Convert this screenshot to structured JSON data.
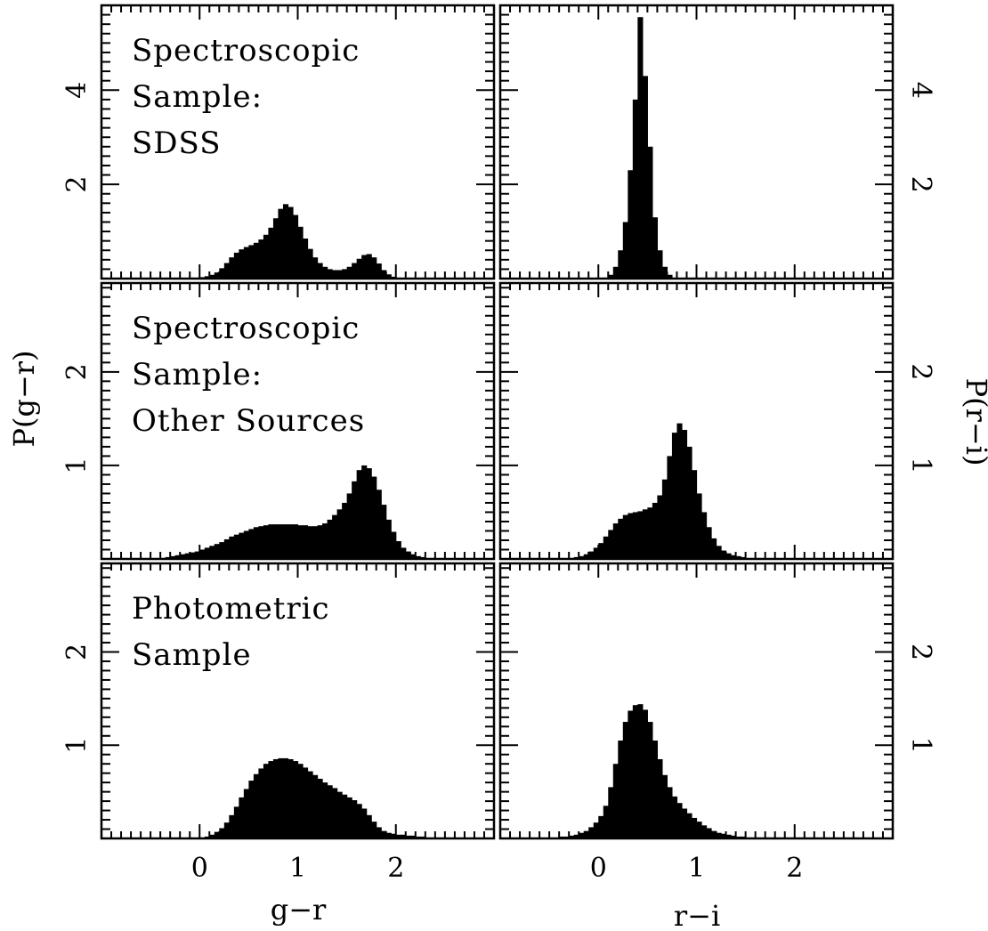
{
  "figure": {
    "xlabels": {
      "left": "g−r",
      "right": "r−i"
    },
    "ylabels": {
      "left": "P(g−r)",
      "right": "P(r−i)"
    }
  },
  "chart_data": [
    {
      "type": "bar",
      "panel": "top-left",
      "annotation": [
        "Spectroscopic",
        "Sample:",
        "SDSS"
      ],
      "xlabel": "g−r",
      "ylabel": "P(g−r)",
      "xlim": [
        -1,
        3
      ],
      "ylim": [
        0,
        5.8
      ],
      "x_ticks": [
        "0",
        "1",
        "2"
      ],
      "y_ticks": [
        "2",
        "4"
      ],
      "bin_width": 0.05,
      "x": [
        -0.3,
        -0.25,
        -0.2,
        -0.15,
        -0.1,
        -0.05,
        0.0,
        0.05,
        0.1,
        0.15,
        0.2,
        0.25,
        0.3,
        0.35,
        0.4,
        0.45,
        0.5,
        0.55,
        0.6,
        0.65,
        0.7,
        0.75,
        0.8,
        0.85,
        0.9,
        0.95,
        1.0,
        1.05,
        1.1,
        1.15,
        1.2,
        1.25,
        1.3,
        1.35,
        1.4,
        1.45,
        1.5,
        1.55,
        1.6,
        1.65,
        1.7,
        1.75,
        1.8,
        1.85,
        1.9,
        1.95,
        2.0,
        2.05,
        2.1
      ],
      "values": [
        0.0,
        0.0,
        0.01,
        0.01,
        0.02,
        0.02,
        0.03,
        0.05,
        0.08,
        0.13,
        0.22,
        0.33,
        0.45,
        0.55,
        0.62,
        0.67,
        0.71,
        0.76,
        0.83,
        0.93,
        1.08,
        1.28,
        1.48,
        1.58,
        1.52,
        1.35,
        1.1,
        0.85,
        0.63,
        0.45,
        0.33,
        0.25,
        0.2,
        0.18,
        0.18,
        0.2,
        0.25,
        0.33,
        0.42,
        0.5,
        0.52,
        0.45,
        0.32,
        0.18,
        0.09,
        0.04,
        0.02,
        0.01,
        0.0
      ]
    },
    {
      "type": "bar",
      "panel": "top-right",
      "xlabel": "r−i",
      "ylabel": "P(r−i)",
      "xlim": [
        -1,
        3
      ],
      "ylim": [
        0,
        5.8
      ],
      "x_ticks": [
        "0",
        "1",
        "2"
      ],
      "y_ticks": [
        "2",
        "4"
      ],
      "bin_width": 0.05,
      "x": [
        0.05,
        0.1,
        0.15,
        0.2,
        0.25,
        0.3,
        0.35,
        0.4,
        0.45,
        0.5,
        0.55,
        0.6,
        0.65,
        0.7,
        0.75
      ],
      "values": [
        0.02,
        0.08,
        0.25,
        0.6,
        1.2,
        2.3,
        3.8,
        5.55,
        4.3,
        2.8,
        1.3,
        0.6,
        0.25,
        0.08,
        0.02
      ]
    },
    {
      "type": "bar",
      "panel": "middle-left",
      "annotation": [
        "Spectroscopic",
        "Sample:",
        "Other Sources"
      ],
      "xlabel": "g−r",
      "ylabel": "P(g−r)",
      "xlim": [
        -1,
        3
      ],
      "ylim": [
        0,
        2.95
      ],
      "x_ticks": [
        "0",
        "1",
        "2"
      ],
      "y_ticks": [
        "1",
        "2"
      ],
      "bin_width": 0.05,
      "x": [
        -0.5,
        -0.45,
        -0.4,
        -0.35,
        -0.3,
        -0.25,
        -0.2,
        -0.15,
        -0.1,
        -0.05,
        0.0,
        0.05,
        0.1,
        0.15,
        0.2,
        0.25,
        0.3,
        0.35,
        0.4,
        0.45,
        0.5,
        0.55,
        0.6,
        0.65,
        0.7,
        0.75,
        0.8,
        0.85,
        0.9,
        0.95,
        1.0,
        1.05,
        1.1,
        1.15,
        1.2,
        1.25,
        1.3,
        1.35,
        1.4,
        1.45,
        1.5,
        1.55,
        1.6,
        1.65,
        1.7,
        1.75,
        1.8,
        1.85,
        1.9,
        1.95,
        2.0,
        2.05,
        2.1,
        2.15,
        2.2,
        2.25,
        2.3,
        2.35,
        2.4,
        2.45,
        2.5,
        2.55
      ],
      "values": [
        0.0,
        0.01,
        0.01,
        0.02,
        0.03,
        0.04,
        0.05,
        0.06,
        0.07,
        0.08,
        0.1,
        0.12,
        0.14,
        0.16,
        0.18,
        0.21,
        0.24,
        0.26,
        0.28,
        0.3,
        0.32,
        0.34,
        0.35,
        0.36,
        0.37,
        0.37,
        0.37,
        0.37,
        0.37,
        0.37,
        0.36,
        0.36,
        0.35,
        0.35,
        0.36,
        0.38,
        0.42,
        0.47,
        0.53,
        0.6,
        0.7,
        0.83,
        0.95,
        1.0,
        0.97,
        0.88,
        0.74,
        0.58,
        0.42,
        0.29,
        0.19,
        0.12,
        0.08,
        0.05,
        0.03,
        0.02,
        0.01,
        0.01,
        0.0,
        0.0,
        0.0,
        0.0
      ]
    },
    {
      "type": "bar",
      "panel": "middle-right",
      "xlabel": "r−i",
      "ylabel": "P(r−i)",
      "xlim": [
        -1,
        3
      ],
      "ylim": [
        0,
        2.95
      ],
      "x_ticks": [
        "0",
        "1",
        "2"
      ],
      "y_ticks": [
        "1",
        "2"
      ],
      "bin_width": 0.05,
      "x": [
        -0.35,
        -0.3,
        -0.25,
        -0.2,
        -0.15,
        -0.1,
        -0.05,
        0.0,
        0.05,
        0.1,
        0.15,
        0.2,
        0.25,
        0.3,
        0.35,
        0.4,
        0.45,
        0.5,
        0.55,
        0.6,
        0.65,
        0.7,
        0.75,
        0.8,
        0.85,
        0.9,
        0.95,
        1.0,
        1.05,
        1.1,
        1.15,
        1.2,
        1.25,
        1.3,
        1.35,
        1.4,
        1.45,
        1.5,
        1.55,
        1.6,
        1.65,
        1.7
      ],
      "values": [
        0.0,
        0.01,
        0.02,
        0.03,
        0.05,
        0.08,
        0.12,
        0.17,
        0.24,
        0.31,
        0.38,
        0.43,
        0.47,
        0.49,
        0.5,
        0.51,
        0.53,
        0.55,
        0.6,
        0.68,
        0.85,
        1.1,
        1.35,
        1.45,
        1.38,
        1.2,
        0.95,
        0.7,
        0.5,
        0.34,
        0.22,
        0.14,
        0.09,
        0.06,
        0.04,
        0.03,
        0.02,
        0.01,
        0.01,
        0.01,
        0.0,
        0.0
      ]
    },
    {
      "type": "bar",
      "panel": "bottom-left",
      "annotation": [
        "Photometric",
        "Sample"
      ],
      "xlabel": "g−r",
      "ylabel": "P(g−r)",
      "xlim": [
        -1,
        3
      ],
      "ylim": [
        0,
        2.95
      ],
      "x_ticks": [
        "0",
        "1",
        "2"
      ],
      "y_ticks": [
        "1",
        "2"
      ],
      "bin_width": 0.05,
      "x": [
        -0.1,
        -0.05,
        0.0,
        0.05,
        0.1,
        0.15,
        0.2,
        0.25,
        0.3,
        0.35,
        0.4,
        0.45,
        0.5,
        0.55,
        0.6,
        0.65,
        0.7,
        0.75,
        0.8,
        0.85,
        0.9,
        0.95,
        1.0,
        1.05,
        1.1,
        1.15,
        1.2,
        1.25,
        1.3,
        1.35,
        1.4,
        1.45,
        1.5,
        1.55,
        1.6,
        1.65,
        1.7,
        1.75,
        1.8,
        1.85,
        1.9,
        1.95,
        2.0,
        2.05,
        2.1,
        2.15,
        2.2,
        2.25,
        2.3,
        2.35,
        2.4,
        2.45,
        2.5,
        2.55
      ],
      "values": [
        0.0,
        0.01,
        0.01,
        0.02,
        0.04,
        0.07,
        0.11,
        0.17,
        0.25,
        0.34,
        0.44,
        0.53,
        0.62,
        0.69,
        0.75,
        0.8,
        0.83,
        0.85,
        0.86,
        0.86,
        0.85,
        0.83,
        0.8,
        0.76,
        0.72,
        0.68,
        0.64,
        0.6,
        0.57,
        0.54,
        0.5,
        0.47,
        0.44,
        0.41,
        0.37,
        0.32,
        0.25,
        0.18,
        0.12,
        0.08,
        0.06,
        0.05,
        0.04,
        0.04,
        0.03,
        0.03,
        0.02,
        0.02,
        0.01,
        0.01,
        0.01,
        0.0,
        0.0,
        0.0
      ]
    },
    {
      "type": "bar",
      "panel": "bottom-right",
      "xlabel": "r−i",
      "ylabel": "P(r−i)",
      "xlim": [
        -1,
        3
      ],
      "ylim": [
        0,
        2.95
      ],
      "x_ticks": [
        "0",
        "1",
        "2"
      ],
      "y_ticks": [
        "1",
        "2"
      ],
      "bin_width": 0.05,
      "x": [
        -0.55,
        -0.5,
        -0.45,
        -0.4,
        -0.35,
        -0.3,
        -0.25,
        -0.2,
        -0.15,
        -0.1,
        -0.05,
        0.0,
        0.05,
        0.1,
        0.15,
        0.2,
        0.25,
        0.3,
        0.35,
        0.4,
        0.45,
        0.5,
        0.55,
        0.6,
        0.65,
        0.7,
        0.75,
        0.8,
        0.85,
        0.9,
        0.95,
        1.0,
        1.05,
        1.1,
        1.15,
        1.2,
        1.25,
        1.3,
        1.35,
        1.4,
        1.45,
        1.5,
        1.55,
        1.6,
        1.65,
        1.7
      ],
      "values": [
        0.0,
        0.01,
        0.01,
        0.02,
        0.02,
        0.03,
        0.04,
        0.06,
        0.08,
        0.12,
        0.17,
        0.24,
        0.35,
        0.55,
        0.8,
        1.05,
        1.25,
        1.37,
        1.43,
        1.44,
        1.38,
        1.25,
        1.05,
        0.85,
        0.68,
        0.55,
        0.45,
        0.38,
        0.32,
        0.27,
        0.22,
        0.18,
        0.14,
        0.11,
        0.08,
        0.06,
        0.05,
        0.04,
        0.03,
        0.02,
        0.02,
        0.01,
        0.01,
        0.01,
        0.0,
        0.0
      ]
    }
  ]
}
